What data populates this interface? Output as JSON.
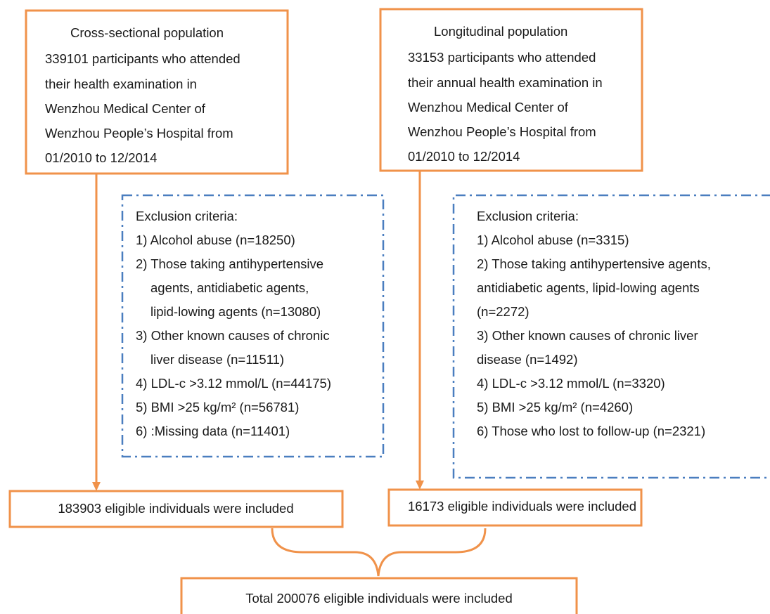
{
  "cross_sectional": {
    "lines": [
      "Cross-sectional population",
      "339101 participants who attended",
      "their health examination in",
      "Wenzhou Medical Center of",
      "Wenzhou People’s Hospital from",
      "01/2010 to 12/2014"
    ]
  },
  "longitudinal": {
    "lines": [
      "Longitudinal population",
      "33153 participants who attended",
      "their annual health examination in",
      "Wenzhou Medical Center of",
      "Wenzhou People’s Hospital from",
      "01/2010 to 12/2014"
    ]
  },
  "exclusion_left": {
    "title": "Exclusion criteria:",
    "items": [
      [
        "1) Alcohol abuse (n=18250)"
      ],
      [
        "2) Those taking antihypertensive",
        "agents, antidiabetic agents,",
        "lipid-lowing agents (n=13080)"
      ],
      [
        "3) Other known causes of chronic",
        "liver disease (n=11511)"
      ],
      [
        "4) LDL-c >3.12 mmol/L (n=44175)"
      ],
      [
        "5) BMI >25 kg/m² (n=56781)"
      ],
      [
        "6) :Missing data (n=11401)"
      ]
    ]
  },
  "exclusion_right": {
    "title": "Exclusion criteria:",
    "lines": [
      "1) Alcohol abuse (n=3315)",
      "2) Those taking antihypertensive agents,",
      "antidiabetic agents, lipid-lowing agents",
      "(n=2272)",
      "3) Other known causes of chronic liver",
      "disease (n=1492)",
      "4) LDL-c >3.12 mmol/L (n=3320)",
      "5) BMI >25 kg/m² (n=4260)",
      "6) Those who lost to follow-up (n=2321)"
    ]
  },
  "eligible_left": "183903 eligible individuals were included",
  "eligible_right": "16173 eligible individuals were included",
  "total": "Total 200076 eligible individuals were included"
}
